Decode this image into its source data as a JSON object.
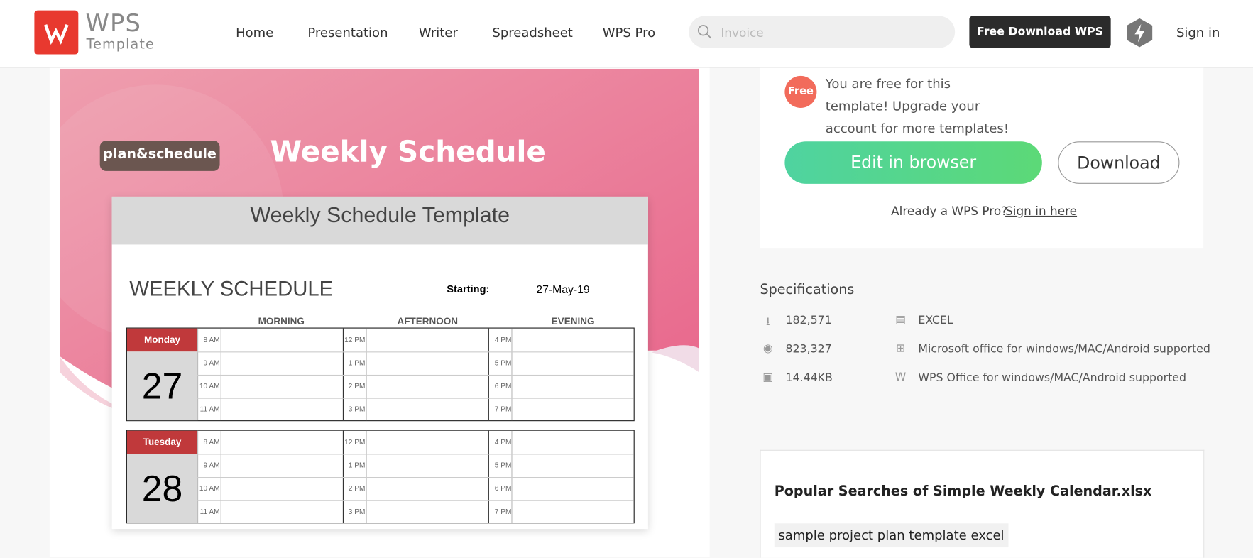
{
  "header": {
    "logo_top": "WPS",
    "logo_bottom": "Template",
    "nav": [
      "Home",
      "Presentation",
      "Writer",
      "Spreadsheet",
      "WPS Pro"
    ],
    "search_placeholder": "Invoice",
    "download_button": "Free Download WPS",
    "sign_in": "Sign in"
  },
  "preview": {
    "badge": "plan&schedule",
    "banner_title": "Weekly Schedule",
    "sheet_title": "Weekly Schedule Template",
    "schedule_heading": "WEEKLY SCHEDULE",
    "starting_label": "Starting:",
    "starting_date": "27-May-19",
    "columns": [
      "MORNING",
      "AFTERNOON",
      "EVENING"
    ],
    "days": [
      {
        "name": "Monday",
        "date": "27"
      },
      {
        "name": "Tuesday",
        "date": "28"
      }
    ],
    "times": [
      [
        "8 AM",
        "12 PM",
        "4 PM"
      ],
      [
        "9 AM",
        "1 PM",
        "5 PM"
      ],
      [
        "10 AM",
        "2 PM",
        "6 PM"
      ],
      [
        "11 AM",
        "3 PM",
        "7 PM"
      ]
    ]
  },
  "panel": {
    "free_badge": "Free",
    "free_message": "You are free for this template! Upgrade your account for more templates!",
    "edit_button": "Edit in browser",
    "download_button": "Download",
    "pro_prompt": "Already a WPS Pro?",
    "pro_link": "Sign in here"
  },
  "specifications": {
    "title": "Specifications",
    "items": [
      "182,571",
      "EXCEL",
      "823,327",
      "Microsoft office for windows/MAC/Android supported",
      "14.44KB",
      "WPS Office for windows/MAC/Android supported"
    ]
  },
  "popular": {
    "title": "Popular Searches of Simple Weekly Calendar.xlsx",
    "tags": [
      "sample project plan template excel"
    ]
  }
}
